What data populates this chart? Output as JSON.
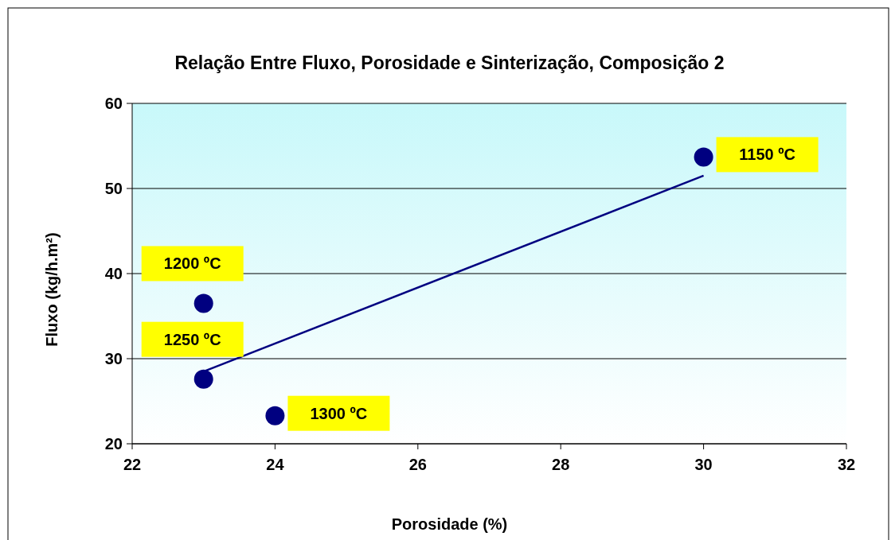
{
  "chart_data": {
    "type": "scatter",
    "title": "Relação Entre Fluxo, Porosidade e Sinterização, Composição 2",
    "xlabel": "Porosidade (%)",
    "ylabel": "Fluxo (kg/h.m²)",
    "series": [
      {
        "color": "#000080",
        "x": [
          30,
          23,
          23,
          24
        ],
        "values": [
          53.7,
          36.5,
          27.6,
          23.3
        ],
        "marker": "circle"
      },
      {
        "type": "line",
        "color": "#000080",
        "x": [
          23,
          30
        ],
        "values": [
          28.5,
          51.5
        ],
        "line_style": "solid"
      }
    ],
    "xlim": [
      22,
      32
    ],
    "xticks": [
      22,
      24,
      26,
      28,
      30,
      32
    ],
    "ylim": [
      20,
      60
    ],
    "yticks": [
      20,
      30,
      40,
      50,
      60
    ],
    "grid": "y",
    "annotations": [
      {
        "text": "1150 ºC",
        "x": 30,
        "y": 53.7
      },
      {
        "text": "1200 ºC",
        "x": 23,
        "y": 36.5
      },
      {
        "text": "1250 ºC",
        "x": 23,
        "y": 27.6
      },
      {
        "text": "1300 ºC",
        "x": 24,
        "y": 23.3
      }
    ]
  }
}
